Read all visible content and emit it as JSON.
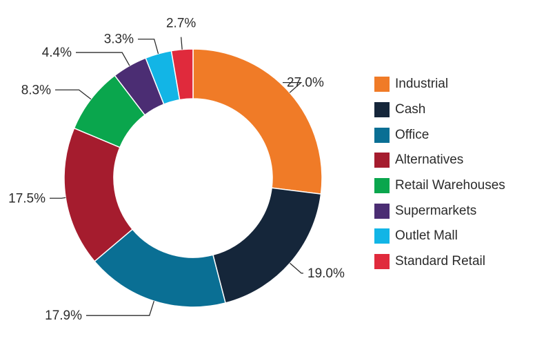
{
  "chart_data": {
    "type": "pie",
    "donut": true,
    "categories": [
      "Industrial",
      "Cash",
      "Office",
      "Alternatives",
      "Retail Warehouses",
      "Supermarkets",
      "Outlet Mall",
      "Standard Retail"
    ],
    "values": [
      27.0,
      19.0,
      17.9,
      17.5,
      8.3,
      4.4,
      3.3,
      2.7
    ],
    "value_labels": [
      "27.0%",
      "19.0%",
      "17.9%",
      "17.5%",
      "8.3%",
      "4.4%",
      "3.3%",
      "2.7%"
    ],
    "colors": [
      "#f07b27",
      "#15263a",
      "#0a6f94",
      "#a51c2e",
      "#0aa64d",
      "#4b2d73",
      "#12b5e6",
      "#e02a3c"
    ],
    "legend_position": "right",
    "title": "",
    "legend": [
      {
        "label": "Industrial",
        "color": "#f07b27"
      },
      {
        "label": "Cash",
        "color": "#15263a"
      },
      {
        "label": "Office",
        "color": "#0a6f94"
      },
      {
        "label": "Alternatives",
        "color": "#a51c2e"
      },
      {
        "label": "Retail Warehouses",
        "color": "#0aa64d"
      },
      {
        "label": "Supermarkets",
        "color": "#4b2d73"
      },
      {
        "label": "Outlet Mall",
        "color": "#12b5e6"
      },
      {
        "label": "Standard Retail",
        "color": "#e02a3c"
      }
    ]
  }
}
